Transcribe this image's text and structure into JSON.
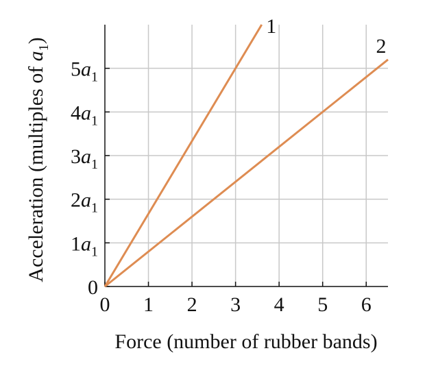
{
  "chart_data": {
    "type": "line",
    "xlabel": "Force (number of rubber bands)",
    "ylabel_main": "Acceleration (multiples of ",
    "ylabel_var": "a",
    "ylabel_sub": "1",
    "ylabel_close": ")",
    "xlim": [
      0,
      6.5
    ],
    "ylim": [
      0,
      6
    ],
    "x_ticks": [
      0,
      1,
      2,
      3,
      4,
      5,
      6
    ],
    "x_tick_labels": [
      "0",
      "1",
      "2",
      "3",
      "4",
      "5",
      "6"
    ],
    "y_ticks": [
      0,
      1,
      2,
      3,
      4,
      5
    ],
    "y_tick_labels": [
      {
        "coef": "0",
        "var": "",
        "sub": ""
      },
      {
        "coef": "1",
        "var": "a",
        "sub": "1"
      },
      {
        "coef": "2",
        "var": "a",
        "sub": "1"
      },
      {
        "coef": "3",
        "var": "a",
        "sub": "1"
      },
      {
        "coef": "4",
        "var": "a",
        "sub": "1"
      },
      {
        "coef": "5",
        "var": "a",
        "sub": "1"
      }
    ],
    "grid": true,
    "line_color": "#DE8C52",
    "series": [
      {
        "name": "1",
        "x": [
          0,
          3.6
        ],
        "y": [
          0,
          6
        ]
      },
      {
        "name": "2",
        "x": [
          0,
          6.5
        ],
        "y": [
          0,
          5.2
        ]
      }
    ]
  }
}
